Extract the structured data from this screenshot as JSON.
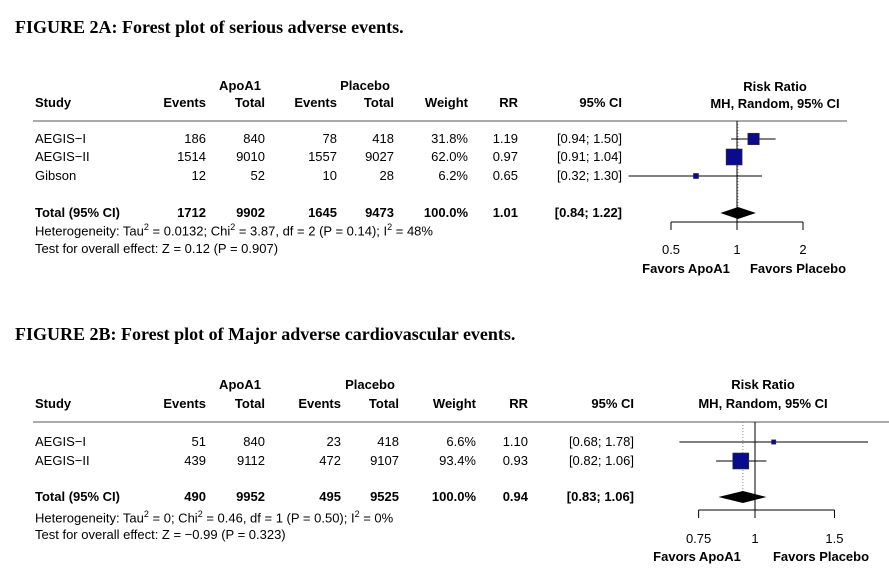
{
  "chart_data": [
    {
      "type": "forest",
      "title": "FIGURE 2A: Forest plot of  serious adverse events.",
      "group_headers": {
        "treatment": "ApoA1",
        "control": "Placebo"
      },
      "columns": [
        "Study",
        "Events",
        "Total",
        "Events",
        "Total",
        "Weight",
        "RR",
        "95% CI"
      ],
      "plot_header": [
        "Risk Ratio",
        "MH, Random, 95% CI"
      ],
      "studies": [
        {
          "name": "AEGIS−I",
          "t_events": "186",
          "t_total": "840",
          "c_events": "78",
          "c_total": "418",
          "weight": "31.8%",
          "rr": "1.19",
          "ci": "[0.94; 1.50]",
          "rr_v": 1.19,
          "lo": 0.94,
          "hi": 1.5,
          "w": 31.8
        },
        {
          "name": "AEGIS−II",
          "t_events": "1514",
          "t_total": "9010",
          "c_events": "1557",
          "c_total": "9027",
          "weight": "62.0%",
          "rr": "0.97",
          "ci": "[0.91; 1.04]",
          "rr_v": 0.97,
          "lo": 0.91,
          "hi": 1.04,
          "w": 62.0
        },
        {
          "name": "Gibson",
          "t_events": "12",
          "t_total": "52",
          "c_events": "10",
          "c_total": "28",
          "weight": "6.2%",
          "rr": "0.65",
          "ci": "[0.32; 1.30]",
          "rr_v": 0.65,
          "lo": 0.32,
          "hi": 1.3,
          "w": 6.2
        }
      ],
      "total": {
        "name": "Total (95% CI)",
        "t_events": "1712",
        "t_total": "9902",
        "c_events": "1645",
        "c_total": "9473",
        "weight": "100.0%",
        "rr": "1.01",
        "ci": "[0.84; 1.22]",
        "rr_v": 1.01,
        "lo": 0.84,
        "hi": 1.22
      },
      "heterogeneity": {
        "prefix": "Heterogeneity: Tau",
        "tau": " = 0.0132; Chi",
        "chi": " = 3.87, df = 2 (P = 0.14); I",
        "i2": " = 48%",
        "sup": "2"
      },
      "overall": "Test for overall effect: Z = 0.12 (P = 0.907)",
      "ticks": [
        {
          "v": 0.5,
          "label": "0.5"
        },
        {
          "v": 1,
          "label": "1"
        },
        {
          "v": 2,
          "label": "2"
        }
      ],
      "xlim": [
        0.5,
        2
      ],
      "favors_left": "Favors ApoA1",
      "favors_right": "Favors Placebo"
    },
    {
      "type": "forest",
      "title": "FIGURE 2B: Forest plot of Major adverse cardiovascular events.",
      "group_headers": {
        "treatment": "ApoA1",
        "control": "Placebo"
      },
      "columns": [
        "Study",
        "Events",
        "Total",
        "Events",
        "Total",
        "Weight",
        "RR",
        "95% CI"
      ],
      "plot_header": [
        "Risk Ratio",
        "MH, Random, 95% CI"
      ],
      "studies": [
        {
          "name": "AEGIS−I",
          "t_events": "51",
          "t_total": "840",
          "c_events": "23",
          "c_total": "418",
          "weight": "6.6%",
          "rr": "1.10",
          "ci": "[0.68; 1.78]",
          "rr_v": 1.1,
          "lo": 0.68,
          "hi": 1.78,
          "w": 6.6
        },
        {
          "name": "AEGIS−II",
          "t_events": "439",
          "t_total": "9112",
          "c_events": "472",
          "c_total": "9107",
          "weight": "93.4%",
          "rr": "0.93",
          "ci": "[0.82; 1.06]",
          "rr_v": 0.93,
          "lo": 0.82,
          "hi": 1.06,
          "w": 93.4
        }
      ],
      "total": {
        "name": "Total (95% CI)",
        "t_events": "490",
        "t_total": "9952",
        "c_events": "495",
        "c_total": "9525",
        "weight": "100.0%",
        "rr": "0.94",
        "ci": "[0.83; 1.06]",
        "rr_v": 0.94,
        "lo": 0.83,
        "hi": 1.06
      },
      "heterogeneity": {
        "prefix": "Heterogeneity: Tau",
        "tau": " = 0; Chi",
        "chi": " = 0.46, df = 1 (P = 0.50); I",
        "i2": " = 0%",
        "sup": "2"
      },
      "overall": "Test for overall effect: Z = −0.99 (P = 0.323)",
      "ticks": [
        {
          "v": 0.75,
          "label": "0.75"
        },
        {
          "v": 1,
          "label": "1"
        },
        {
          "v": 1.5,
          "label": "1.5"
        }
      ],
      "xlim": [
        0.75,
        1.5
      ],
      "favors_left": "Favors ApoA1",
      "favors_right": "Favors Placebo"
    }
  ]
}
